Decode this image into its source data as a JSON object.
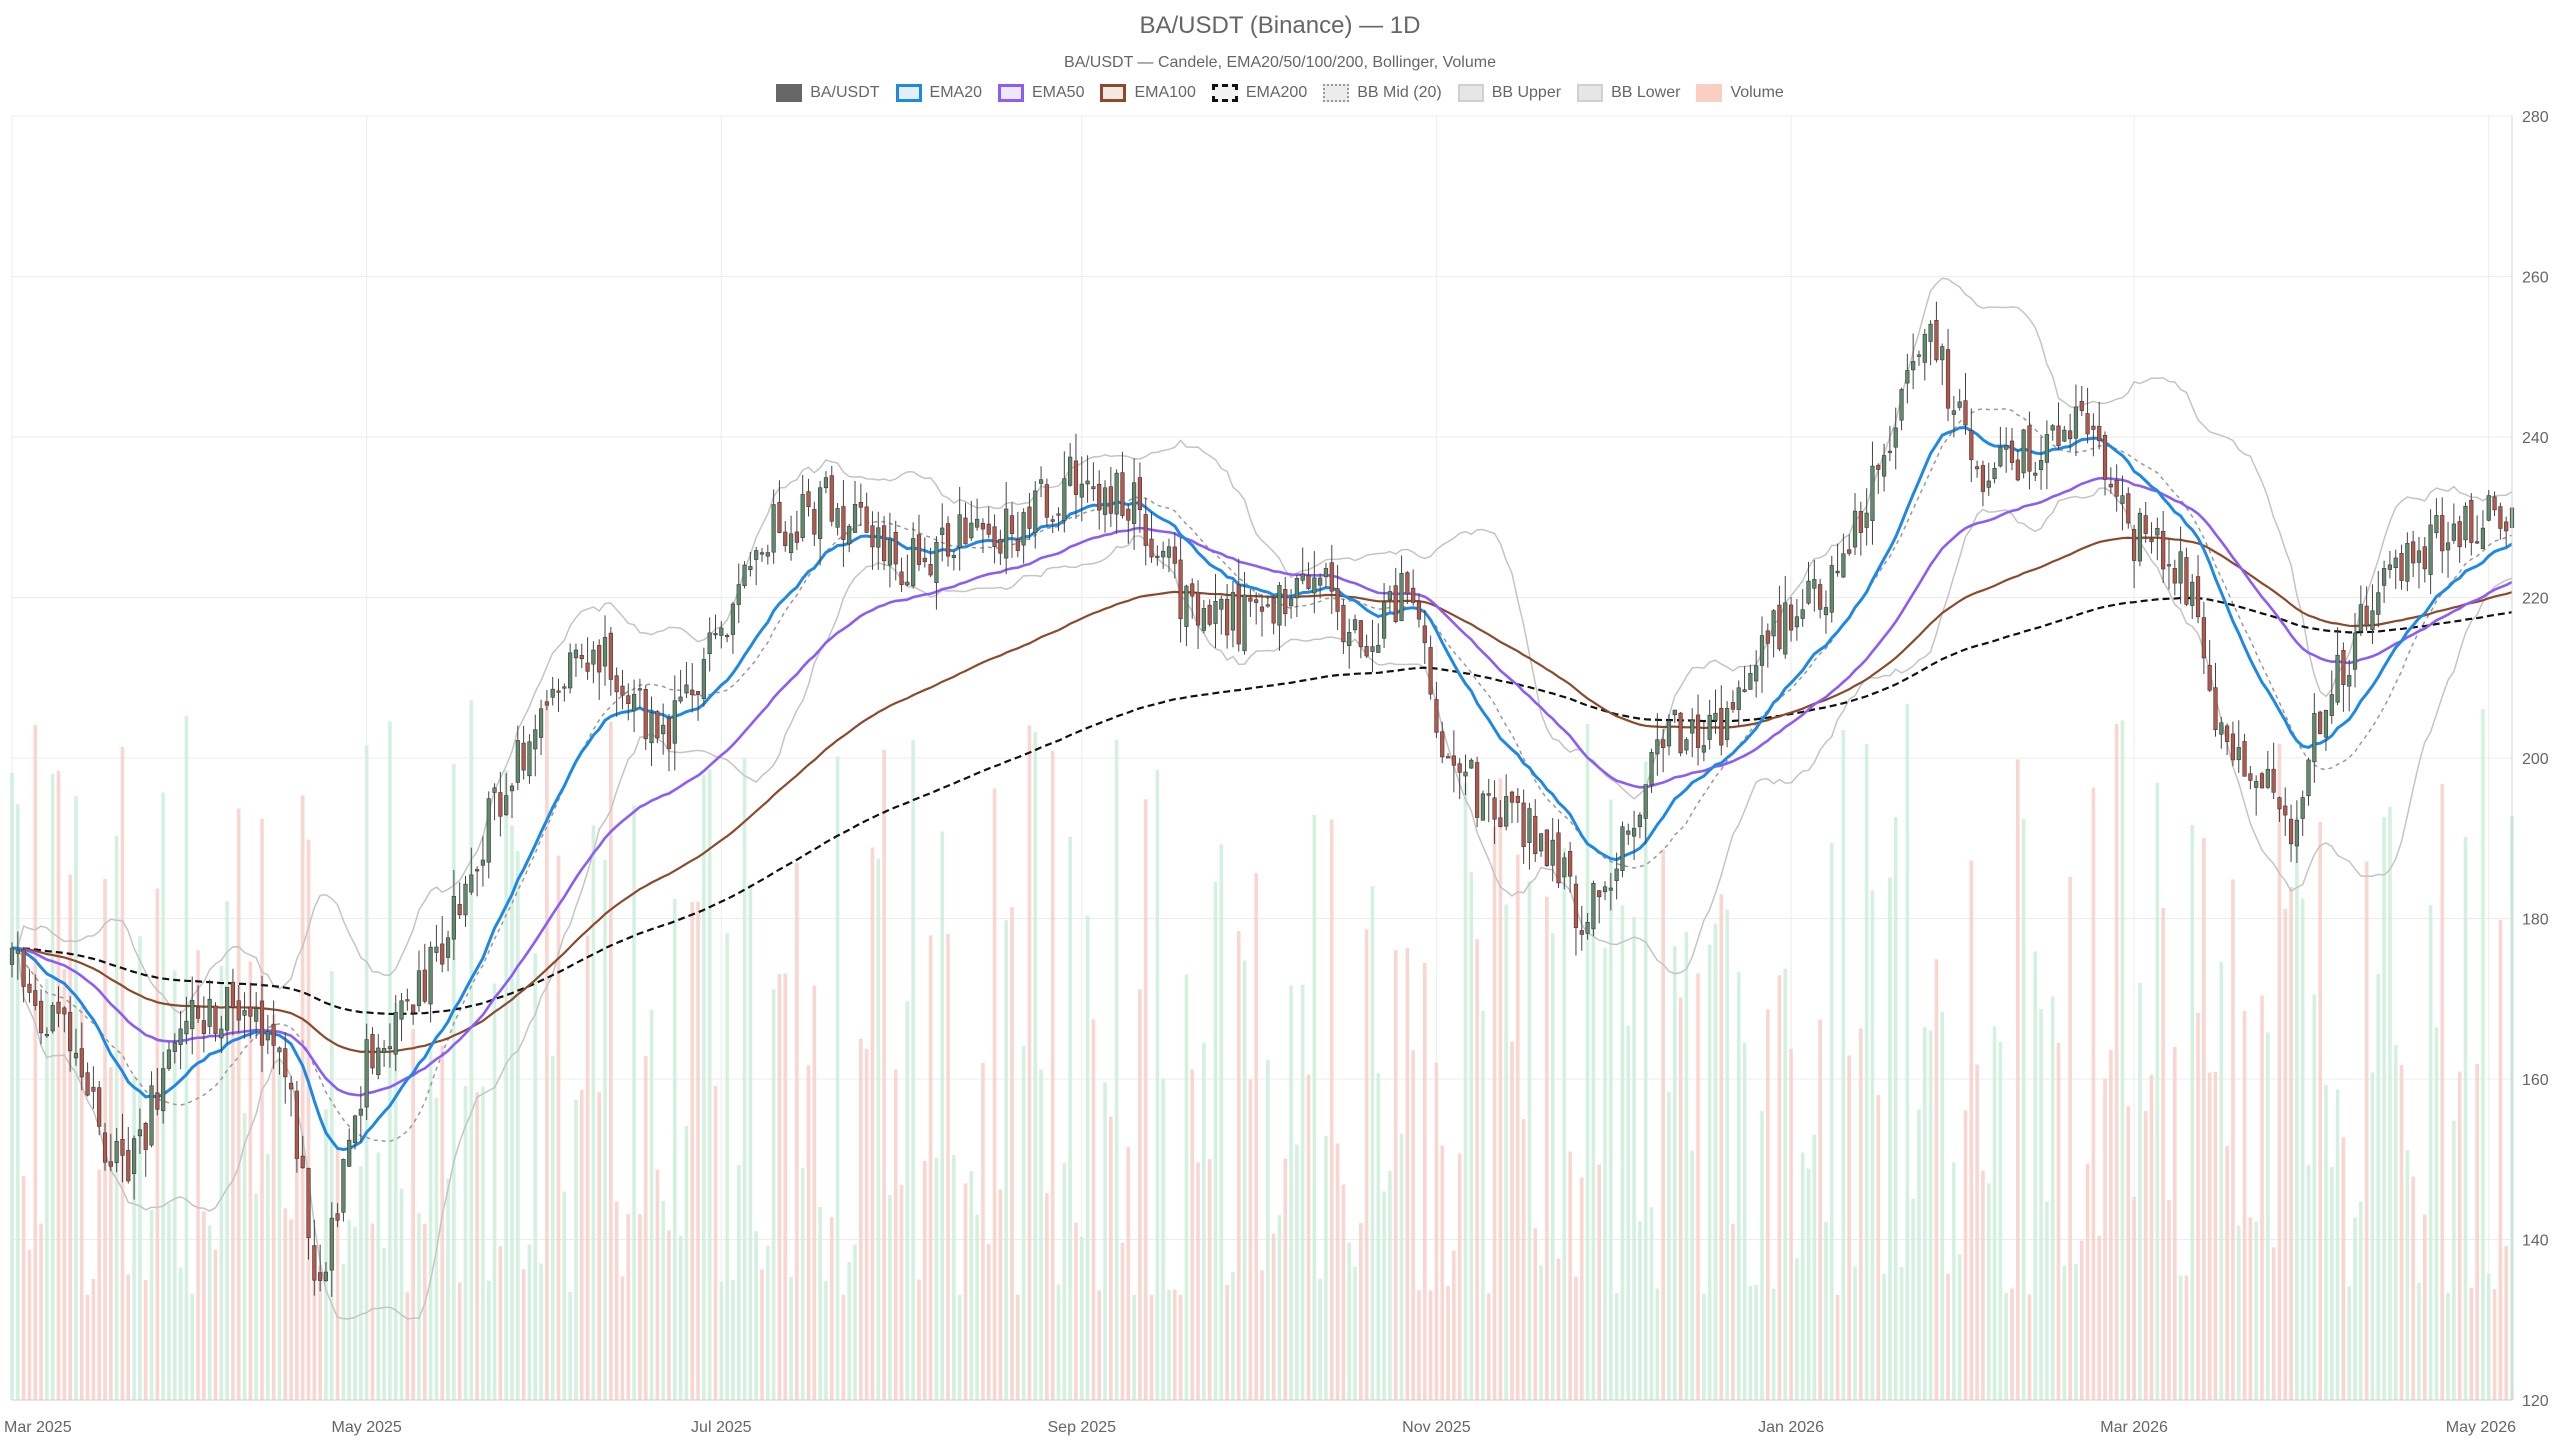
{
  "chart_data": {
    "type": "candlestick",
    "title": "BA/USDT (Binance) — 1D",
    "subtitle": "BA/USDT — Candele, EMA20/50/100/200, Bollinger, Volume",
    "legend": [
      {
        "label": "BA/USDT",
        "kind": "candle",
        "color": "#666666"
      },
      {
        "label": "EMA20",
        "kind": "line",
        "color": "#1e88e5"
      },
      {
        "label": "EMA50",
        "kind": "line",
        "color": "#8b5cf6"
      },
      {
        "label": "EMA100",
        "kind": "line",
        "color": "#8b4a2b"
      },
      {
        "label": "EMA200",
        "kind": "dashed",
        "color": "#111111"
      },
      {
        "label": "BB Mid (20)",
        "kind": "dotted",
        "color": "#999999"
      },
      {
        "label": "BB Upper",
        "kind": "band",
        "color": "#c8c8c8"
      },
      {
        "label": "BB Lower",
        "kind": "band",
        "color": "#c8c8c8"
      },
      {
        "label": "Volume",
        "kind": "bar",
        "color": "#f9c6bd"
      }
    ],
    "y_axis": {
      "position": "right",
      "min": 120,
      "max": 280,
      "ticks": [
        120,
        140,
        160,
        180,
        200,
        220,
        240,
        260,
        280
      ]
    },
    "x_axis": {
      "start": "2025-03-01",
      "end": "2026-05-05",
      "ticks": [
        {
          "date": "2025-03-01",
          "label": "Mar 2025"
        },
        {
          "date": "2025-05-01",
          "label": "May 2025"
        },
        {
          "date": "2025-07-01",
          "label": "Jul 2025"
        },
        {
          "date": "2025-09-01",
          "label": "Sep 2025"
        },
        {
          "date": "2025-11-01",
          "label": "Nov 2025"
        },
        {
          "date": "2026-01-01",
          "label": "Jan 2026"
        },
        {
          "date": "2026-03-01",
          "label": "Mar 2026"
        },
        {
          "date": "2026-05-01",
          "label": "May 2026"
        }
      ]
    },
    "grid": true,
    "colors": {
      "up": "#5f8a6b",
      "down": "#b5574b",
      "wick": "#444444",
      "vol_up": "#cdeedb",
      "vol_down": "#f9cfc8",
      "band": "#c4c4c4"
    },
    "price_path": [
      [
        "2025-03-01",
        174
      ],
      [
        "2025-03-10",
        165
      ],
      [
        "2025-03-20",
        148
      ],
      [
        "2025-04-01",
        168
      ],
      [
        "2025-04-10",
        170
      ],
      [
        "2025-04-17",
        160
      ],
      [
        "2025-04-23",
        133
      ],
      [
        "2025-05-01",
        163
      ],
      [
        "2025-05-10",
        170
      ],
      [
        "2025-05-20",
        188
      ],
      [
        "2025-05-31",
        207
      ],
      [
        "2025-06-10",
        214
      ],
      [
        "2025-06-20",
        202
      ],
      [
        "2025-06-30",
        214
      ],
      [
        "2025-07-10",
        229
      ],
      [
        "2025-07-20",
        232
      ],
      [
        "2025-08-01",
        224
      ],
      [
        "2025-08-10",
        228
      ],
      [
        "2025-08-20",
        228
      ],
      [
        "2025-08-30",
        235
      ],
      [
        "2025-09-10",
        231
      ],
      [
        "2025-09-20",
        218
      ],
      [
        "2025-10-01",
        217
      ],
      [
        "2025-10-10",
        223
      ],
      [
        "2025-10-20",
        214
      ],
      [
        "2025-10-28",
        222
      ],
      [
        "2025-11-01",
        202
      ],
      [
        "2025-11-10",
        194
      ],
      [
        "2025-11-20",
        190
      ],
      [
        "2025-11-26",
        179
      ],
      [
        "2025-12-01",
        186
      ],
      [
        "2025-12-10",
        203
      ],
      [
        "2025-12-20",
        204
      ],
      [
        "2025-12-31",
        218
      ],
      [
        "2026-01-10",
        224
      ],
      [
        "2026-01-20",
        246
      ],
      [
        "2026-01-26",
        252
      ],
      [
        "2026-02-01",
        236
      ],
      [
        "2026-02-10",
        238
      ],
      [
        "2026-02-20",
        242
      ],
      [
        "2026-03-01",
        228
      ],
      [
        "2026-03-10",
        222
      ],
      [
        "2026-03-15",
        206
      ],
      [
        "2026-03-22",
        198
      ],
      [
        "2026-03-28",
        192
      ],
      [
        "2026-04-01",
        203
      ],
      [
        "2026-04-10",
        218
      ],
      [
        "2026-04-20",
        226
      ],
      [
        "2026-05-05",
        232
      ]
    ]
  }
}
